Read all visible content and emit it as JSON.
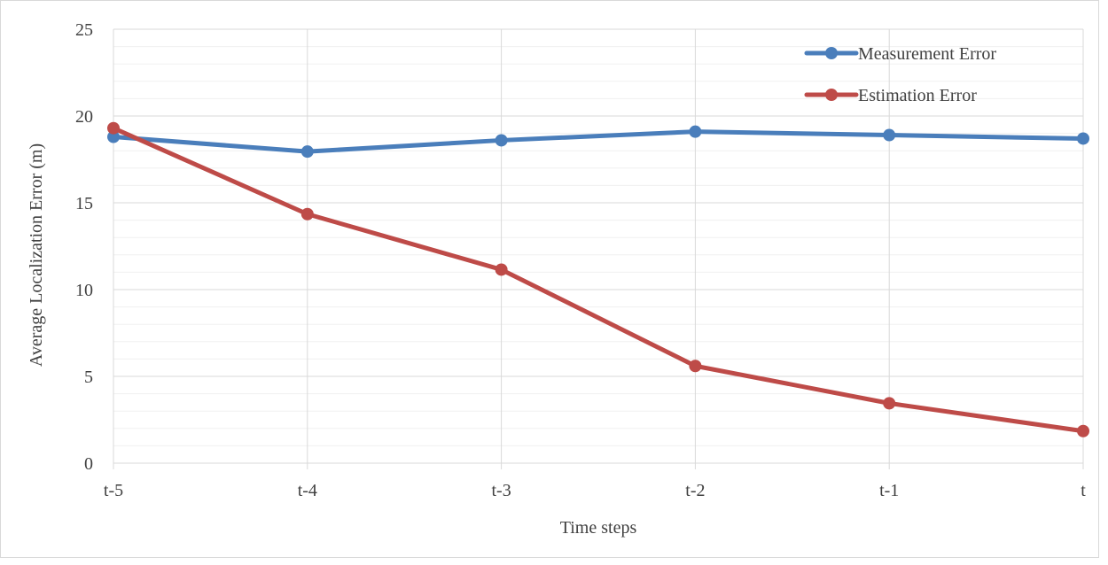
{
  "chart_data": {
    "type": "line",
    "title": "",
    "xlabel": "Time steps",
    "ylabel": "Average Localization Error (m)",
    "categories": [
      "t-5",
      "t-4",
      "t-3",
      "t-2",
      "t-1",
      "t"
    ],
    "ylim": [
      0,
      25
    ],
    "yticks": [
      0,
      5,
      10,
      15,
      20,
      25
    ],
    "minor_grid_step": 1,
    "grid": true,
    "legend_position": "top-right",
    "series": [
      {
        "name": "Measurement Error",
        "color": "#4a7ebb",
        "values": [
          18.8,
          17.95,
          18.6,
          19.1,
          18.9,
          18.7
        ]
      },
      {
        "name": "Estimation Error",
        "color": "#be4b48",
        "values": [
          19.3,
          14.35,
          11.15,
          5.6,
          3.45,
          1.85
        ]
      }
    ]
  }
}
